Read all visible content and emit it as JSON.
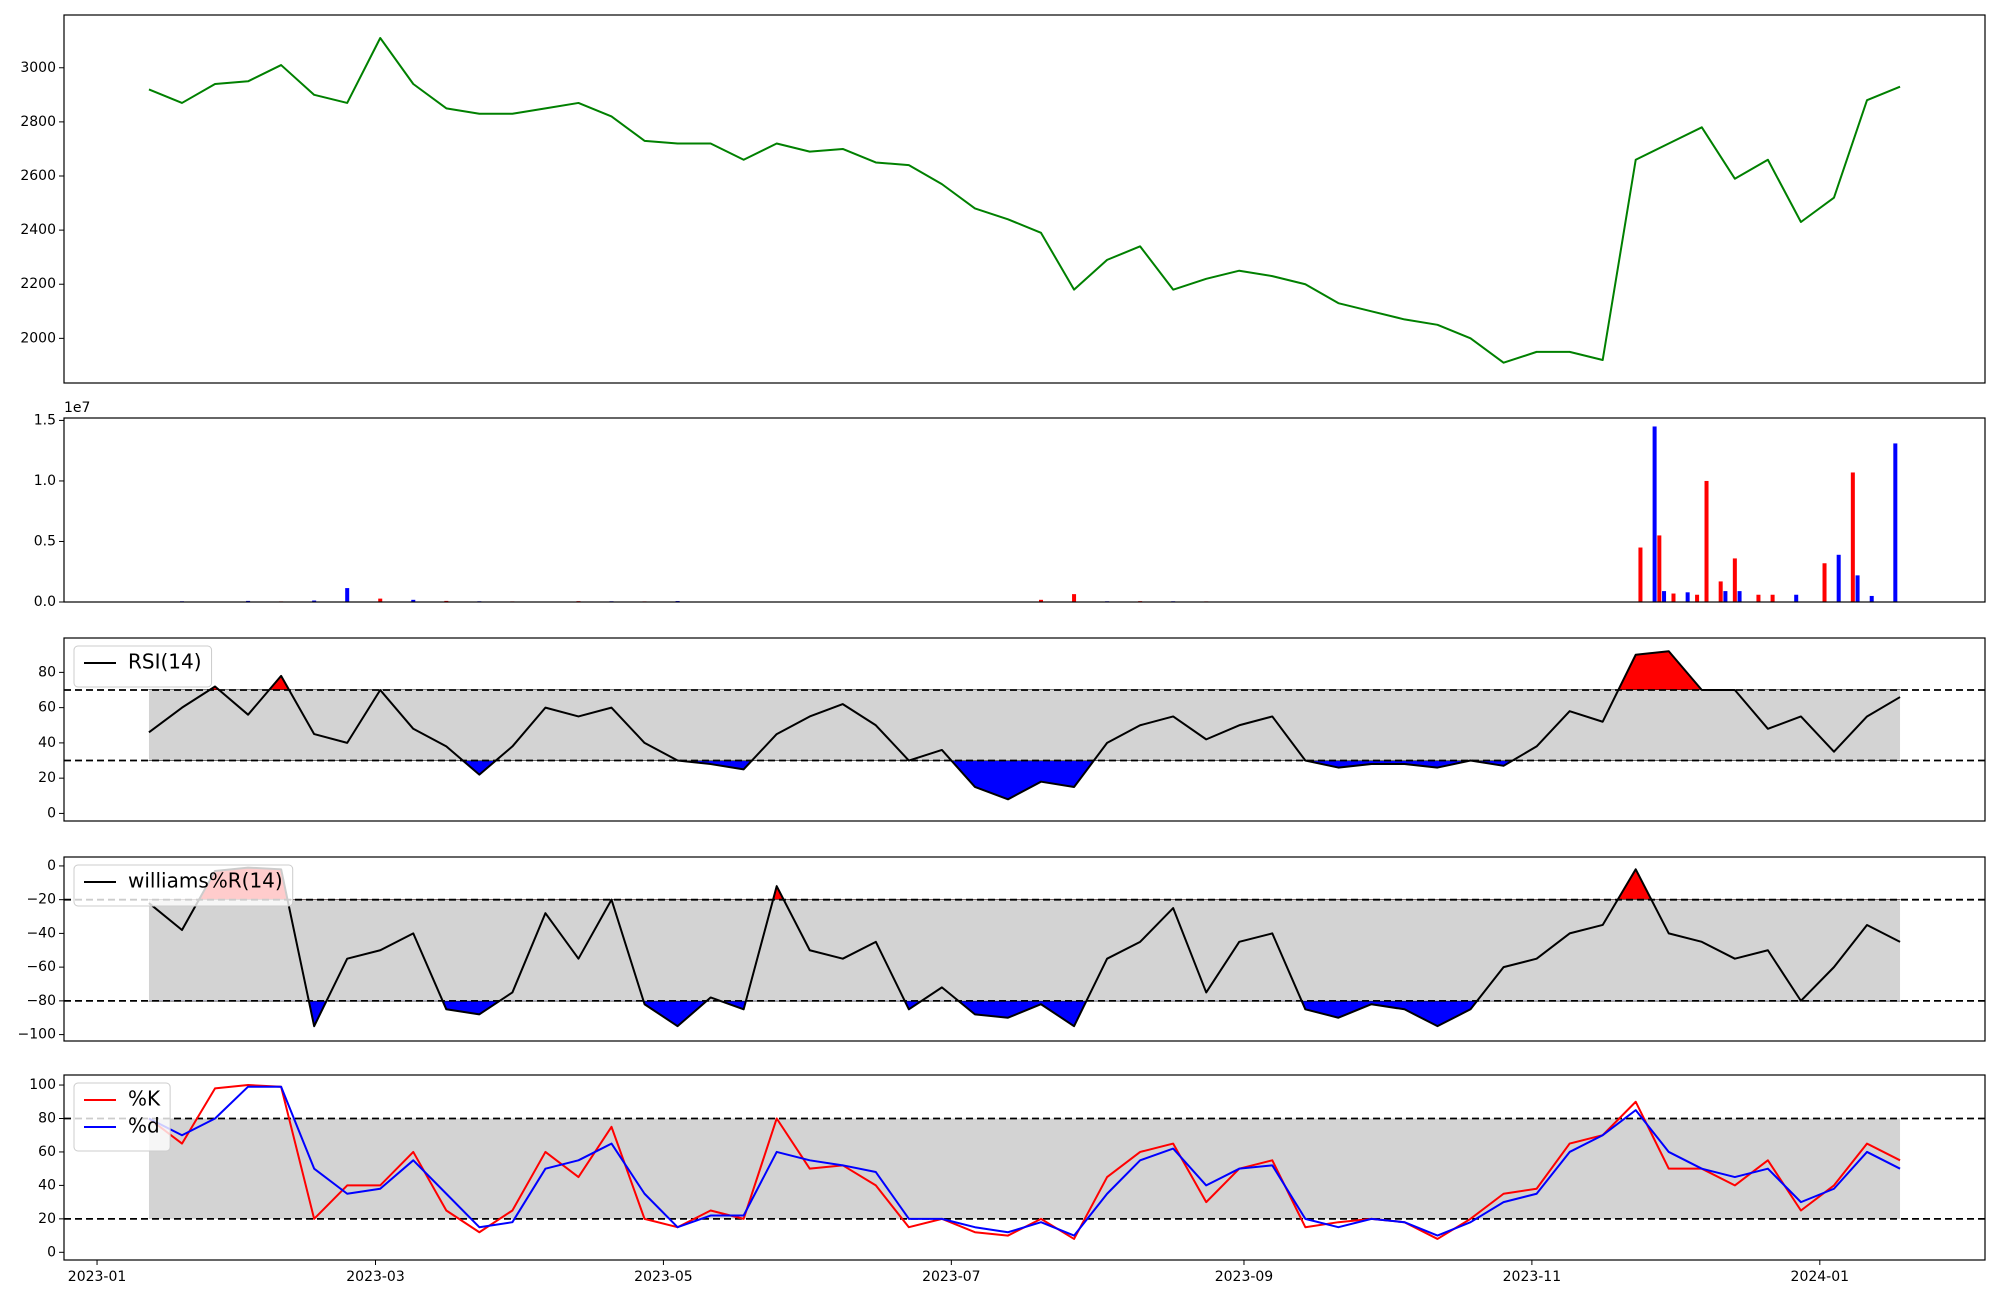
{
  "chart_data": [
    {
      "type": "line",
      "color": "green",
      "x": [
        "2023-01-12",
        "2023-01-19",
        "2023-01-26",
        "2023-02-02",
        "2023-02-09",
        "2023-02-16",
        "2023-02-23",
        "2023-03-02",
        "2023-03-09",
        "2023-03-16",
        "2023-03-23",
        "2023-03-30",
        "2023-04-06",
        "2023-04-13",
        "2023-04-20",
        "2023-04-27",
        "2023-05-04",
        "2023-05-11",
        "2023-05-18",
        "2023-05-25",
        "2023-06-01",
        "2023-06-08",
        "2023-06-15",
        "2023-06-22",
        "2023-06-29",
        "2023-07-06",
        "2023-07-13",
        "2023-07-20",
        "2023-07-27",
        "2023-08-03",
        "2023-08-10",
        "2023-08-17",
        "2023-08-24",
        "2023-08-31",
        "2023-09-07",
        "2023-09-14",
        "2023-09-21",
        "2023-09-28",
        "2023-10-05",
        "2023-10-12",
        "2023-10-19",
        "2023-10-26",
        "2023-11-02",
        "2023-11-09",
        "2023-11-16",
        "2023-11-23",
        "2023-11-30",
        "2023-12-07",
        "2023-12-14",
        "2023-12-21",
        "2023-12-28",
        "2024-01-04",
        "2024-01-11",
        "2024-01-18"
      ],
      "values": [
        2920,
        2870,
        2940,
        2950,
        3010,
        2900,
        2870,
        3110,
        2940,
        2850,
        2830,
        2830,
        2850,
        2870,
        2820,
        2730,
        2720,
        2720,
        2660,
        2720,
        2690,
        2700,
        2650,
        2640,
        2570,
        2480,
        2440,
        2390,
        2180,
        2290,
        2340,
        2180,
        2220,
        2250,
        2230,
        2200,
        2130,
        2100,
        2070,
        2050,
        2000,
        1910,
        1950,
        1950,
        1920,
        2660,
        2720,
        2780,
        2590,
        2660,
        2430,
        2520,
        2880,
        2930
      ],
      "xlim": [
        "2022-12-25",
        "2024-02-05"
      ],
      "ylim": [
        1835,
        3195
      ],
      "yticks": [
        2000,
        2200,
        2400,
        2600,
        2800,
        3000
      ]
    },
    {
      "type": "bar",
      "offset_label": "1e7",
      "x": [
        "2023-01-12",
        "2023-01-19",
        "2023-01-26",
        "2023-02-02",
        "2023-02-09",
        "2023-02-16",
        "2023-02-23",
        "2023-03-02",
        "2023-03-09",
        "2023-03-16",
        "2023-03-23",
        "2023-03-30",
        "2023-04-06",
        "2023-04-13",
        "2023-04-20",
        "2023-04-27",
        "2023-05-04",
        "2023-05-11",
        "2023-05-18",
        "2023-05-25",
        "2023-06-01",
        "2023-06-08",
        "2023-06-15",
        "2023-06-22",
        "2023-06-29",
        "2023-07-06",
        "2023-07-13",
        "2023-07-20",
        "2023-07-27",
        "2023-08-03",
        "2023-08-10",
        "2023-08-17",
        "2023-08-24",
        "2023-08-31",
        "2023-09-07",
        "2023-09-14",
        "2023-09-21",
        "2023-09-28",
        "2023-10-05",
        "2023-10-12",
        "2023-10-19",
        "2023-10-26",
        "2023-11-02",
        "2023-11-09",
        "2023-11-16",
        "2023-11-24",
        "2023-11-27",
        "2023-11-28",
        "2023-11-29",
        "2023-12-01",
        "2023-12-04",
        "2023-12-06",
        "2023-12-08",
        "2023-12-11",
        "2023-12-12",
        "2023-12-14",
        "2023-12-15",
        "2023-12-19",
        "2023-12-22",
        "2023-12-27",
        "2024-01-02",
        "2024-01-05",
        "2024-01-08",
        "2024-01-09",
        "2024-01-12",
        "2024-01-17"
      ],
      "values": [
        30000,
        60000,
        20000,
        90000,
        50000,
        120000,
        1150000,
        280000,
        180000,
        90000,
        60000,
        50000,
        40000,
        70000,
        60000,
        50000,
        80000,
        30000,
        10000,
        10000,
        10000,
        10000,
        10000,
        10000,
        10000,
        10000,
        20000,
        180000,
        650000,
        60000,
        70000,
        60000,
        50000,
        40000,
        20000,
        10000,
        20000,
        40000,
        30000,
        20000,
        10000,
        10000,
        10000,
        10000,
        10000,
        4500000,
        14500000,
        5500000,
        900000,
        700000,
        800000,
        600000,
        10000000,
        1700000,
        900000,
        3600000,
        900000,
        600000,
        600000,
        600000,
        3200000,
        3900000,
        10700000,
        2200000,
        500000,
        13100000
      ],
      "colors": [
        "red",
        "blue",
        "red",
        "blue",
        "red",
        "blue",
        "blue",
        "red",
        "blue",
        "red",
        "blue",
        "red",
        "blue",
        "red",
        "blue",
        "red",
        "blue",
        "red",
        "blue",
        "red",
        "blue",
        "red",
        "blue",
        "red",
        "blue",
        "red",
        "blue",
        "red",
        "red",
        "blue",
        "red",
        "blue",
        "red",
        "blue",
        "red",
        "blue",
        "red",
        "blue",
        "red",
        "blue",
        "red",
        "blue",
        "red",
        "blue",
        "red",
        "red",
        "blue",
        "red",
        "blue",
        "red",
        "blue",
        "red",
        "red",
        "red",
        "blue",
        "red",
        "blue",
        "red",
        "red",
        "blue",
        "red",
        "blue",
        "red",
        "blue",
        "blue",
        "blue"
      ],
      "xlim": [
        "2022-12-25",
        "2024-02-05"
      ],
      "ylim": [
        0,
        15200000
      ],
      "yticks": [
        {
          "value": 0,
          "label": "0.0"
        },
        {
          "value": 5000000,
          "label": "0.5"
        },
        {
          "value": 10000000,
          "label": "1.0"
        },
        {
          "value": 15000000,
          "label": "1.5"
        }
      ]
    },
    {
      "type": "line",
      "legend": "upper left",
      "bands": [
        30,
        70
      ],
      "band_color": "#d3d3d3",
      "above_color": "red",
      "below_color": "blue",
      "x": [
        "2023-01-12",
        "2023-01-19",
        "2023-01-26",
        "2023-02-02",
        "2023-02-09",
        "2023-02-16",
        "2023-02-23",
        "2023-03-02",
        "2023-03-09",
        "2023-03-16",
        "2023-03-23",
        "2023-03-30",
        "2023-04-06",
        "2023-04-13",
        "2023-04-20",
        "2023-04-27",
        "2023-05-04",
        "2023-05-11",
        "2023-05-18",
        "2023-05-25",
        "2023-06-01",
        "2023-06-08",
        "2023-06-15",
        "2023-06-22",
        "2023-06-29",
        "2023-07-06",
        "2023-07-13",
        "2023-07-20",
        "2023-07-27",
        "2023-08-03",
        "2023-08-10",
        "2023-08-17",
        "2023-08-24",
        "2023-08-31",
        "2023-09-07",
        "2023-09-14",
        "2023-09-21",
        "2023-09-28",
        "2023-10-05",
        "2023-10-12",
        "2023-10-19",
        "2023-10-26",
        "2023-11-02",
        "2023-11-09",
        "2023-11-16",
        "2023-11-23",
        "2023-11-30",
        "2023-12-07",
        "2023-12-14",
        "2023-12-21",
        "2023-12-28",
        "2024-01-04",
        "2024-01-11",
        "2024-01-18"
      ],
      "series": [
        {
          "name": "RSI(14)",
          "color": "black",
          "values": [
            46,
            60,
            72,
            56,
            78,
            45,
            40,
            70,
            48,
            38,
            22,
            38,
            60,
            55,
            60,
            40,
            30,
            28,
            25,
            45,
            55,
            62,
            50,
            30,
            36,
            15,
            8,
            18,
            15,
            40,
            50,
            55,
            42,
            50,
            55,
            30,
            26,
            28,
            28,
            26,
            30,
            27,
            38,
            58,
            52,
            90,
            92,
            70,
            70,
            48,
            55,
            35,
            55,
            66
          ]
        }
      ],
      "xlim": [
        "2022-12-25",
        "2024-02-05"
      ],
      "ylim": [
        -4.3,
        99.5
      ],
      "yticks": [
        0,
        20,
        40,
        60,
        80
      ]
    },
    {
      "type": "line",
      "legend": "upper left",
      "bands": [
        -80,
        -20
      ],
      "band_color": "#d3d3d3",
      "above_color": "red",
      "below_color": "blue",
      "x": [
        "2023-01-12",
        "2023-01-19",
        "2023-01-26",
        "2023-02-02",
        "2023-02-09",
        "2023-02-16",
        "2023-02-23",
        "2023-03-02",
        "2023-03-09",
        "2023-03-16",
        "2023-03-23",
        "2023-03-30",
        "2023-04-06",
        "2023-04-13",
        "2023-04-20",
        "2023-04-27",
        "2023-05-04",
        "2023-05-11",
        "2023-05-18",
        "2023-05-25",
        "2023-06-01",
        "2023-06-08",
        "2023-06-15",
        "2023-06-22",
        "2023-06-29",
        "2023-07-06",
        "2023-07-13",
        "2023-07-20",
        "2023-07-27",
        "2023-08-03",
        "2023-08-10",
        "2023-08-17",
        "2023-08-24",
        "2023-08-31",
        "2023-09-07",
        "2023-09-14",
        "2023-09-21",
        "2023-09-28",
        "2023-10-05",
        "2023-10-12",
        "2023-10-19",
        "2023-10-26",
        "2023-11-02",
        "2023-11-09",
        "2023-11-16",
        "2023-11-23",
        "2023-11-30",
        "2023-12-07",
        "2023-12-14",
        "2023-12-21",
        "2023-12-28",
        "2024-01-04",
        "2024-01-11",
        "2024-01-18"
      ],
      "series": [
        {
          "name": "williams%R(14)",
          "color": "black",
          "values": [
            -22,
            -38,
            -3,
            -1,
            -2,
            -95,
            -55,
            -50,
            -40,
            -85,
            -88,
            -75,
            -28,
            -55,
            -20,
            -82,
            -95,
            -78,
            -85,
            -12,
            -50,
            -55,
            -45,
            -85,
            -72,
            -88,
            -90,
            -82,
            -95,
            -55,
            -45,
            -25,
            -75,
            -45,
            -40,
            -85,
            -90,
            -82,
            -85,
            -95,
            -85,
            -60,
            -55,
            -40,
            -35,
            -2,
            -40,
            -45,
            -55,
            -50,
            -80,
            -60,
            -35,
            -45
          ]
        }
      ],
      "xlim": [
        "2022-12-25",
        "2024-02-05"
      ],
      "ylim": [
        -103.8,
        5.3
      ],
      "yticks": [
        0,
        {
          "value": -20,
          "label": "−20"
        },
        {
          "value": -40,
          "label": "−40"
        },
        {
          "value": -60,
          "label": "−60"
        },
        {
          "value": -80,
          "label": "−80"
        },
        {
          "value": -100,
          "label": "−100"
        }
      ]
    },
    {
      "type": "line",
      "legend": "upper left",
      "bands": [
        20,
        80
      ],
      "band_color": "#d3d3d3",
      "x": [
        "2023-01-12",
        "2023-01-19",
        "2023-01-26",
        "2023-02-02",
        "2023-02-09",
        "2023-02-16",
        "2023-02-23",
        "2023-03-02",
        "2023-03-09",
        "2023-03-16",
        "2023-03-23",
        "2023-03-30",
        "2023-04-06",
        "2023-04-13",
        "2023-04-20",
        "2023-04-27",
        "2023-05-04",
        "2023-05-11",
        "2023-05-18",
        "2023-05-25",
        "2023-06-01",
        "2023-06-08",
        "2023-06-15",
        "2023-06-22",
        "2023-06-29",
        "2023-07-06",
        "2023-07-13",
        "2023-07-20",
        "2023-07-27",
        "2023-08-03",
        "2023-08-10",
        "2023-08-17",
        "2023-08-24",
        "2023-08-31",
        "2023-09-07",
        "2023-09-14",
        "2023-09-21",
        "2023-09-28",
        "2023-10-05",
        "2023-10-12",
        "2023-10-19",
        "2023-10-26",
        "2023-11-02",
        "2023-11-09",
        "2023-11-16",
        "2023-11-23",
        "2023-11-30",
        "2023-12-07",
        "2023-12-14",
        "2023-12-21",
        "2023-12-28",
        "2024-01-04",
        "2024-01-11",
        "2024-01-18"
      ],
      "series": [
        {
          "name": "%K",
          "color": "red",
          "values": [
            80,
            65,
            98,
            100,
            99,
            20,
            40,
            40,
            60,
            25,
            12,
            25,
            60,
            45,
            75,
            20,
            15,
            25,
            20,
            80,
            50,
            52,
            40,
            15,
            20,
            12,
            10,
            20,
            8,
            45,
            60,
            65,
            30,
            50,
            55,
            15,
            18,
            20,
            18,
            8,
            20,
            35,
            38,
            65,
            70,
            90,
            50,
            50,
            40,
            55,
            25,
            40,
            65,
            55
          ]
        },
        {
          "name": "%d",
          "color": "blue",
          "values": [
            80,
            70,
            80,
            99,
            99,
            50,
            35,
            38,
            55,
            35,
            15,
            18,
            50,
            55,
            65,
            35,
            15,
            22,
            22,
            60,
            55,
            52,
            48,
            20,
            20,
            15,
            12,
            18,
            10,
            35,
            55,
            62,
            40,
            50,
            52,
            20,
            15,
            20,
            18,
            10,
            18,
            30,
            35,
            60,
            70,
            85,
            60,
            50,
            45,
            50,
            30,
            38,
            60,
            50
          ]
        }
      ],
      "xlim": [
        "2022-12-25",
        "2024-02-05"
      ],
      "ylim": [
        -4.6,
        106
      ],
      "yticks": [
        0,
        20,
        40,
        60,
        80,
        100
      ],
      "xticks": [
        {
          "value": "2023-01-01",
          "label": "2023-01"
        },
        {
          "value": "2023-03-01",
          "label": "2023-03"
        },
        {
          "value": "2023-05-01",
          "label": "2023-05"
        },
        {
          "value": "2023-07-01",
          "label": "2023-07"
        },
        {
          "value": "2023-09-01",
          "label": "2023-09"
        },
        {
          "value": "2023-11-01",
          "label": "2023-11"
        },
        {
          "value": "2024-01-01",
          "label": "2024-01"
        }
      ]
    }
  ]
}
